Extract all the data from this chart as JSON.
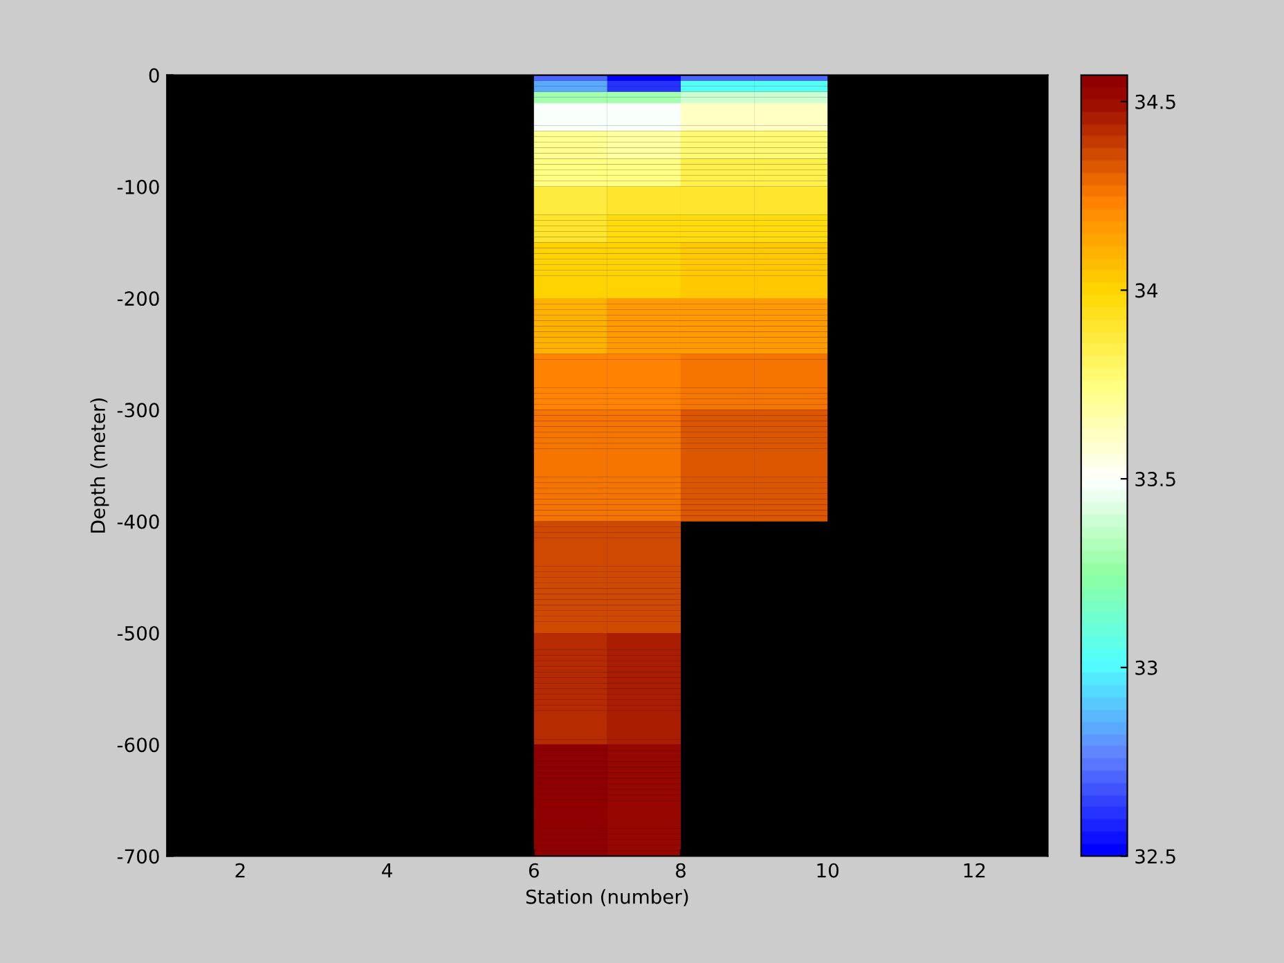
{
  "chart_data": {
    "type": "heatmap",
    "xlabel": "Station (number)",
    "ylabel": "Depth (meter)",
    "cells": [
      [
        null,
        null,
        null,
        null,
        null,
        32.7,
        32.5,
        32.7,
        32.7,
        null,
        null,
        null
      ],
      [
        null,
        null,
        null,
        null,
        null,
        32.85,
        32.62,
        33.02,
        33.02,
        null,
        null,
        null
      ],
      [
        null,
        null,
        null,
        null,
        null,
        32.85,
        32.62,
        33.02,
        33.02,
        null,
        null,
        null
      ],
      [
        null,
        null,
        null,
        null,
        null,
        33.3,
        33.3,
        33.4,
        33.4,
        null,
        null,
        null
      ],
      [
        null,
        null,
        null,
        null,
        null,
        33.3,
        33.3,
        33.4,
        33.4,
        null,
        null,
        null
      ],
      [
        null,
        null,
        null,
        null,
        null,
        33.48,
        33.48,
        33.6,
        33.6,
        null,
        null,
        null
      ],
      [
        null,
        null,
        null,
        null,
        null,
        33.48,
        33.48,
        33.6,
        33.6,
        null,
        null,
        null
      ],
      [
        null,
        null,
        null,
        null,
        null,
        33.48,
        33.48,
        33.6,
        33.6,
        null,
        null,
        null
      ],
      [
        null,
        null,
        null,
        null,
        null,
        33.48,
        33.48,
        33.6,
        33.6,
        null,
        null,
        null
      ],
      [
        null,
        null,
        null,
        null,
        null,
        33.48,
        33.48,
        33.6,
        33.6,
        null,
        null,
        null
      ],
      [
        null,
        null,
        null,
        null,
        null,
        33.7,
        33.67,
        33.78,
        33.78,
        null,
        null,
        null
      ],
      [
        null,
        null,
        null,
        null,
        null,
        33.7,
        33.67,
        33.78,
        33.78,
        null,
        null,
        null
      ],
      [
        null,
        null,
        null,
        null,
        null,
        33.7,
        33.67,
        33.78,
        33.78,
        null,
        null,
        null
      ],
      [
        null,
        null,
        null,
        null,
        null,
        33.7,
        33.67,
        33.78,
        33.78,
        null,
        null,
        null
      ],
      [
        null,
        null,
        null,
        null,
        null,
        33.7,
        33.67,
        33.78,
        33.78,
        null,
        null,
        null
      ],
      [
        null,
        null,
        null,
        null,
        null,
        33.75,
        33.73,
        33.85,
        33.85,
        null,
        null,
        null
      ],
      [
        null,
        null,
        null,
        null,
        null,
        33.75,
        33.73,
        33.85,
        33.85,
        null,
        null,
        null
      ],
      [
        null,
        null,
        null,
        null,
        null,
        33.75,
        33.73,
        33.85,
        33.85,
        null,
        null,
        null
      ],
      [
        null,
        null,
        null,
        null,
        null,
        33.75,
        33.73,
        33.85,
        33.85,
        null,
        null,
        null
      ],
      [
        null,
        null,
        null,
        null,
        null,
        33.75,
        33.73,
        33.85,
        33.85,
        null,
        null,
        null
      ],
      [
        null,
        null,
        null,
        null,
        null,
        33.88,
        33.9,
        33.92,
        33.92,
        null,
        null,
        null
      ],
      [
        null,
        null,
        null,
        null,
        null,
        33.88,
        33.9,
        33.92,
        33.92,
        null,
        null,
        null
      ],
      [
        null,
        null,
        null,
        null,
        null,
        33.88,
        33.9,
        33.92,
        33.92,
        null,
        null,
        null
      ],
      [
        null,
        null,
        null,
        null,
        null,
        33.88,
        33.9,
        33.92,
        33.92,
        null,
        null,
        null
      ],
      [
        null,
        null,
        null,
        null,
        null,
        33.88,
        33.9,
        33.92,
        33.92,
        null,
        null,
        null
      ],
      [
        null,
        null,
        null,
        null,
        null,
        33.92,
        33.96,
        33.98,
        33.98,
        null,
        null,
        null
      ],
      [
        null,
        null,
        null,
        null,
        null,
        33.92,
        33.96,
        33.98,
        33.98,
        null,
        null,
        null
      ],
      [
        null,
        null,
        null,
        null,
        null,
        33.92,
        33.96,
        33.98,
        33.98,
        null,
        null,
        null
      ],
      [
        null,
        null,
        null,
        null,
        null,
        33.92,
        33.96,
        33.98,
        33.98,
        null,
        null,
        null
      ],
      [
        null,
        null,
        null,
        null,
        null,
        33.92,
        33.96,
        33.98,
        33.98,
        null,
        null,
        null
      ],
      [
        null,
        null,
        null,
        null,
        null,
        34.0,
        34.0,
        34.05,
        34.05,
        null,
        null,
        null
      ],
      [
        null,
        null,
        null,
        null,
        null,
        34.0,
        34.0,
        34.05,
        34.05,
        null,
        null,
        null
      ],
      [
        null,
        null,
        null,
        null,
        null,
        34.0,
        34.0,
        34.05,
        34.05,
        null,
        null,
        null
      ],
      [
        null,
        null,
        null,
        null,
        null,
        34.0,
        34.0,
        34.05,
        34.05,
        null,
        null,
        null
      ],
      [
        null,
        null,
        null,
        null,
        null,
        34.0,
        34.0,
        34.05,
        34.05,
        null,
        null,
        null
      ],
      [
        null,
        null,
        null,
        null,
        null,
        34.0,
        34.0,
        34.05,
        34.05,
        null,
        null,
        null
      ],
      [
        null,
        null,
        null,
        null,
        null,
        34.0,
        34.0,
        34.05,
        34.05,
        null,
        null,
        null
      ],
      [
        null,
        null,
        null,
        null,
        null,
        34.0,
        34.0,
        34.05,
        34.05,
        null,
        null,
        null
      ],
      [
        null,
        null,
        null,
        null,
        null,
        34.0,
        34.0,
        34.05,
        34.05,
        null,
        null,
        null
      ],
      [
        null,
        null,
        null,
        null,
        null,
        34.0,
        34.0,
        34.05,
        34.05,
        null,
        null,
        null
      ],
      [
        null,
        null,
        null,
        null,
        null,
        34.1,
        34.15,
        34.15,
        34.15,
        null,
        null,
        null
      ],
      [
        null,
        null,
        null,
        null,
        null,
        34.1,
        34.15,
        34.15,
        34.15,
        null,
        null,
        null
      ],
      [
        null,
        null,
        null,
        null,
        null,
        34.1,
        34.15,
        34.15,
        34.15,
        null,
        null,
        null
      ],
      [
        null,
        null,
        null,
        null,
        null,
        34.1,
        34.15,
        34.15,
        34.15,
        null,
        null,
        null
      ],
      [
        null,
        null,
        null,
        null,
        null,
        34.1,
        34.15,
        34.15,
        34.15,
        null,
        null,
        null
      ],
      [
        null,
        null,
        null,
        null,
        null,
        34.1,
        34.15,
        34.15,
        34.15,
        null,
        null,
        null
      ],
      [
        null,
        null,
        null,
        null,
        null,
        34.1,
        34.15,
        34.15,
        34.15,
        null,
        null,
        null
      ],
      [
        null,
        null,
        null,
        null,
        null,
        34.1,
        34.15,
        34.15,
        34.15,
        null,
        null,
        null
      ],
      [
        null,
        null,
        null,
        null,
        null,
        34.1,
        34.15,
        34.15,
        34.15,
        null,
        null,
        null
      ],
      [
        null,
        null,
        null,
        null,
        null,
        34.1,
        34.15,
        34.15,
        34.15,
        null,
        null,
        null
      ],
      [
        null,
        null,
        null,
        null,
        null,
        34.22,
        34.22,
        34.25,
        34.25,
        null,
        null,
        null
      ],
      [
        null,
        null,
        null,
        null,
        null,
        34.22,
        34.22,
        34.25,
        34.25,
        null,
        null,
        null
      ],
      [
        null,
        null,
        null,
        null,
        null,
        34.22,
        34.22,
        34.25,
        34.25,
        null,
        null,
        null
      ],
      [
        null,
        null,
        null,
        null,
        null,
        34.22,
        34.22,
        34.25,
        34.25,
        null,
        null,
        null
      ],
      [
        null,
        null,
        null,
        null,
        null,
        34.22,
        34.22,
        34.25,
        34.25,
        null,
        null,
        null
      ],
      [
        null,
        null,
        null,
        null,
        null,
        34.22,
        34.22,
        34.25,
        34.25,
        null,
        null,
        null
      ],
      [
        null,
        null,
        null,
        null,
        null,
        34.22,
        34.22,
        34.25,
        34.25,
        null,
        null,
        null
      ],
      [
        null,
        null,
        null,
        null,
        null,
        34.22,
        34.22,
        34.25,
        34.25,
        null,
        null,
        null
      ],
      [
        null,
        null,
        null,
        null,
        null,
        34.22,
        34.22,
        34.25,
        34.25,
        null,
        null,
        null
      ],
      [
        null,
        null,
        null,
        null,
        null,
        34.22,
        34.22,
        34.25,
        34.25,
        null,
        null,
        null
      ],
      [
        null,
        null,
        null,
        null,
        null,
        34.25,
        34.25,
        34.32,
        34.32,
        null,
        null,
        null
      ],
      [
        null,
        null,
        null,
        null,
        null,
        34.25,
        34.25,
        34.32,
        34.32,
        null,
        null,
        null
      ],
      [
        null,
        null,
        null,
        null,
        null,
        34.25,
        34.25,
        34.32,
        34.32,
        null,
        null,
        null
      ],
      [
        null,
        null,
        null,
        null,
        null,
        34.25,
        34.25,
        34.32,
        34.32,
        null,
        null,
        null
      ],
      [
        null,
        null,
        null,
        null,
        null,
        34.25,
        34.25,
        34.32,
        34.32,
        null,
        null,
        null
      ],
      [
        null,
        null,
        null,
        null,
        null,
        34.25,
        34.25,
        34.32,
        34.32,
        null,
        null,
        null
      ],
      [
        null,
        null,
        null,
        null,
        null,
        34.25,
        34.25,
        34.32,
        34.32,
        null,
        null,
        null
      ],
      [
        null,
        null,
        null,
        null,
        null,
        34.25,
        34.25,
        34.32,
        34.32,
        null,
        null,
        null
      ],
      [
        null,
        null,
        null,
        null,
        null,
        34.25,
        34.25,
        34.32,
        34.32,
        null,
        null,
        null
      ],
      [
        null,
        null,
        null,
        null,
        null,
        34.25,
        34.25,
        34.32,
        34.32,
        null,
        null,
        null
      ],
      [
        null,
        null,
        null,
        null,
        null,
        34.25,
        34.25,
        34.32,
        34.32,
        null,
        null,
        null
      ],
      [
        null,
        null,
        null,
        null,
        null,
        34.25,
        34.25,
        34.32,
        34.32,
        null,
        null,
        null
      ],
      [
        null,
        null,
        null,
        null,
        null,
        34.25,
        34.25,
        34.32,
        34.32,
        null,
        null,
        null
      ],
      [
        null,
        null,
        null,
        null,
        null,
        34.25,
        34.25,
        34.32,
        34.32,
        null,
        null,
        null
      ],
      [
        null,
        null,
        null,
        null,
        null,
        34.25,
        34.25,
        34.32,
        34.32,
        null,
        null,
        null
      ],
      [
        null,
        null,
        null,
        null,
        null,
        34.25,
        34.25,
        34.32,
        34.32,
        null,
        null,
        null
      ],
      [
        null,
        null,
        null,
        null,
        null,
        34.25,
        34.25,
        34.32,
        34.32,
        null,
        null,
        null
      ],
      [
        null,
        null,
        null,
        null,
        null,
        34.25,
        34.25,
        34.32,
        34.32,
        null,
        null,
        null
      ],
      [
        null,
        null,
        null,
        null,
        null,
        34.25,
        34.25,
        34.32,
        34.32,
        null,
        null,
        null
      ],
      [
        null,
        null,
        null,
        null,
        null,
        34.25,
        34.25,
        34.32,
        34.32,
        null,
        null,
        null
      ],
      [
        null,
        null,
        null,
        null,
        null,
        34.36,
        34.36,
        null,
        null,
        null,
        null,
        null
      ],
      [
        null,
        null,
        null,
        null,
        null,
        34.36,
        34.36,
        null,
        null,
        null,
        null,
        null
      ],
      [
        null,
        null,
        null,
        null,
        null,
        34.36,
        34.36,
        null,
        null,
        null,
        null,
        null
      ],
      [
        null,
        null,
        null,
        null,
        null,
        34.36,
        34.36,
        null,
        null,
        null,
        null,
        null
      ],
      [
        null,
        null,
        null,
        null,
        null,
        34.36,
        34.36,
        null,
        null,
        null,
        null,
        null
      ],
      [
        null,
        null,
        null,
        null,
        null,
        34.36,
        34.36,
        null,
        null,
        null,
        null,
        null
      ],
      [
        null,
        null,
        null,
        null,
        null,
        34.36,
        34.36,
        null,
        null,
        null,
        null,
        null
      ],
      [
        null,
        null,
        null,
        null,
        null,
        34.36,
        34.36,
        null,
        null,
        null,
        null,
        null
      ],
      [
        null,
        null,
        null,
        null,
        null,
        34.36,
        34.36,
        null,
        null,
        null,
        null,
        null
      ],
      [
        null,
        null,
        null,
        null,
        null,
        34.36,
        34.36,
        null,
        null,
        null,
        null,
        null
      ],
      [
        null,
        null,
        null,
        null,
        null,
        34.36,
        34.36,
        null,
        null,
        null,
        null,
        null
      ],
      [
        null,
        null,
        null,
        null,
        null,
        34.36,
        34.36,
        null,
        null,
        null,
        null,
        null
      ],
      [
        null,
        null,
        null,
        null,
        null,
        34.36,
        34.36,
        null,
        null,
        null,
        null,
        null
      ],
      [
        null,
        null,
        null,
        null,
        null,
        34.36,
        34.36,
        null,
        null,
        null,
        null,
        null
      ],
      [
        null,
        null,
        null,
        null,
        null,
        34.36,
        34.36,
        null,
        null,
        null,
        null,
        null
      ],
      [
        null,
        null,
        null,
        null,
        null,
        34.36,
        34.36,
        null,
        null,
        null,
        null,
        null
      ],
      [
        null,
        null,
        null,
        null,
        null,
        34.36,
        34.36,
        null,
        null,
        null,
        null,
        null
      ],
      [
        null,
        null,
        null,
        null,
        null,
        34.36,
        34.36,
        null,
        null,
        null,
        null,
        null
      ],
      [
        null,
        null,
        null,
        null,
        null,
        34.36,
        34.36,
        null,
        null,
        null,
        null,
        null
      ],
      [
        null,
        null,
        null,
        null,
        null,
        34.36,
        34.36,
        null,
        null,
        null,
        null,
        null
      ],
      [
        null,
        null,
        null,
        null,
        null,
        34.44,
        34.47,
        null,
        null,
        null,
        null,
        null
      ],
      [
        null,
        null,
        null,
        null,
        null,
        34.44,
        34.47,
        null,
        null,
        null,
        null,
        null
      ],
      [
        null,
        null,
        null,
        null,
        null,
        34.44,
        34.47,
        null,
        null,
        null,
        null,
        null
      ],
      [
        null,
        null,
        null,
        null,
        null,
        34.44,
        34.47,
        null,
        null,
        null,
        null,
        null
      ],
      [
        null,
        null,
        null,
        null,
        null,
        34.44,
        34.47,
        null,
        null,
        null,
        null,
        null
      ],
      [
        null,
        null,
        null,
        null,
        null,
        34.44,
        34.47,
        null,
        null,
        null,
        null,
        null
      ],
      [
        null,
        null,
        null,
        null,
        null,
        34.44,
        34.47,
        null,
        null,
        null,
        null,
        null
      ],
      [
        null,
        null,
        null,
        null,
        null,
        34.44,
        34.47,
        null,
        null,
        null,
        null,
        null
      ],
      [
        null,
        null,
        null,
        null,
        null,
        34.44,
        34.47,
        null,
        null,
        null,
        null,
        null
      ],
      [
        null,
        null,
        null,
        null,
        null,
        34.44,
        34.47,
        null,
        null,
        null,
        null,
        null
      ],
      [
        null,
        null,
        null,
        null,
        null,
        34.44,
        34.47,
        null,
        null,
        null,
        null,
        null
      ],
      [
        null,
        null,
        null,
        null,
        null,
        34.44,
        34.47,
        null,
        null,
        null,
        null,
        null
      ],
      [
        null,
        null,
        null,
        null,
        null,
        34.44,
        34.47,
        null,
        null,
        null,
        null,
        null
      ],
      [
        null,
        null,
        null,
        null,
        null,
        34.44,
        34.47,
        null,
        null,
        null,
        null,
        null
      ],
      [
        null,
        null,
        null,
        null,
        null,
        34.44,
        34.47,
        null,
        null,
        null,
        null,
        null
      ],
      [
        null,
        null,
        null,
        null,
        null,
        34.44,
        34.47,
        null,
        null,
        null,
        null,
        null
      ],
      [
        null,
        null,
        null,
        null,
        null,
        34.44,
        34.47,
        null,
        null,
        null,
        null,
        null
      ],
      [
        null,
        null,
        null,
        null,
        null,
        34.44,
        34.47,
        null,
        null,
        null,
        null,
        null
      ],
      [
        null,
        null,
        null,
        null,
        null,
        34.44,
        34.47,
        null,
        null,
        null,
        null,
        null
      ],
      [
        null,
        null,
        null,
        null,
        null,
        34.44,
        34.47,
        null,
        null,
        null,
        null,
        null
      ],
      [
        null,
        null,
        null,
        null,
        null,
        34.55,
        34.52,
        null,
        null,
        null,
        null,
        null
      ],
      [
        null,
        null,
        null,
        null,
        null,
        34.55,
        34.52,
        null,
        null,
        null,
        null,
        null
      ],
      [
        null,
        null,
        null,
        null,
        null,
        34.55,
        34.52,
        null,
        null,
        null,
        null,
        null
      ],
      [
        null,
        null,
        null,
        null,
        null,
        34.55,
        34.52,
        null,
        null,
        null,
        null,
        null
      ],
      [
        null,
        null,
        null,
        null,
        null,
        34.55,
        34.52,
        null,
        null,
        null,
        null,
        null
      ],
      [
        null,
        null,
        null,
        null,
        null,
        34.55,
        34.52,
        null,
        null,
        null,
        null,
        null
      ],
      [
        null,
        null,
        null,
        null,
        null,
        34.55,
        34.52,
        null,
        null,
        null,
        null,
        null
      ],
      [
        null,
        null,
        null,
        null,
        null,
        34.55,
        34.52,
        null,
        null,
        null,
        null,
        null
      ],
      [
        null,
        null,
        null,
        null,
        null,
        34.55,
        34.52,
        null,
        null,
        null,
        null,
        null
      ],
      [
        null,
        null,
        null,
        null,
        null,
        34.55,
        34.52,
        null,
        null,
        null,
        null,
        null
      ],
      [
        null,
        null,
        null,
        null,
        null,
        34.55,
        34.52,
        null,
        null,
        null,
        null,
        null
      ],
      [
        null,
        null,
        null,
        null,
        null,
        34.55,
        34.52,
        null,
        null,
        null,
        null,
        null
      ],
      [
        null,
        null,
        null,
        null,
        null,
        34.55,
        34.52,
        null,
        null,
        null,
        null,
        null
      ],
      [
        null,
        null,
        null,
        null,
        null,
        34.55,
        34.52,
        null,
        null,
        null,
        null,
        null
      ],
      [
        null,
        null,
        null,
        null,
        null,
        34.55,
        34.52,
        null,
        null,
        null,
        null,
        null
      ],
      [
        null,
        null,
        null,
        null,
        null,
        34.55,
        34.52,
        null,
        null,
        null,
        null,
        null
      ],
      [
        null,
        null,
        null,
        null,
        null,
        34.55,
        34.52,
        null,
        null,
        null,
        null,
        null
      ],
      [
        null,
        null,
        null,
        null,
        null,
        34.55,
        34.52,
        null,
        null,
        null,
        null,
        null
      ],
      [
        null,
        null,
        null,
        null,
        null,
        34.55,
        34.52,
        null,
        null,
        null,
        null,
        null
      ],
      [
        null,
        null,
        null,
        null,
        null,
        34.55,
        34.52,
        null,
        null,
        null,
        null,
        null
      ]
    ],
    "xlim": [
      1,
      13
    ],
    "ylim": [
      -700,
      0
    ],
    "xticks": [
      2,
      4,
      6,
      8,
      10,
      12
    ],
    "yticks": [
      -700,
      -600,
      -500,
      -400,
      -300,
      -200,
      -100,
      0
    ],
    "clim": [
      32.5,
      34.57
    ],
    "cticks": [
      32.5,
      33,
      33.5,
      34,
      34.5
    ],
    "grid": false
  }
}
